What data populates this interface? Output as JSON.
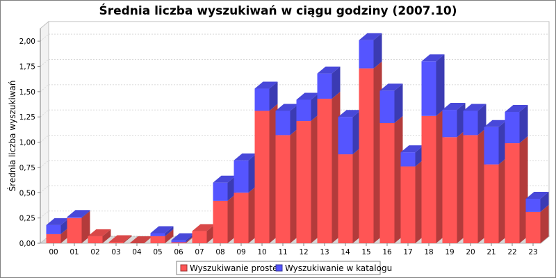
{
  "chart_data": {
    "type": "bar",
    "stacked": true,
    "three_d": true,
    "title": "Średnia liczba wyszukiwań w ciągu godziny (2007.10)",
    "xlabel": "",
    "ylabel": "Średnia liczba wyszukiwań",
    "ylim": [
      0,
      2.125
    ],
    "yticks": [
      0,
      0.25,
      0.5,
      0.75,
      1.0,
      1.25,
      1.5,
      1.75,
      2.0
    ],
    "ytick_labels": [
      "0,00",
      "0,25",
      "0,50",
      "0,75",
      "1,00",
      "1,25",
      "1,50",
      "1,75",
      "2,00"
    ],
    "categories": [
      "00",
      "01",
      "02",
      "03",
      "04",
      "05",
      "06",
      "07",
      "08",
      "09",
      "10",
      "11",
      "12",
      "13",
      "14",
      "15",
      "16",
      "17",
      "18",
      "19",
      "20",
      "21",
      "22",
      "23"
    ],
    "series": [
      {
        "name": "Wyszukiwanie proste",
        "color": "#ff5555",
        "values": [
          0.09,
          0.25,
          0.07,
          0.01,
          0.0,
          0.07,
          0.01,
          0.12,
          0.42,
          0.5,
          1.31,
          1.07,
          1.21,
          1.43,
          0.88,
          1.73,
          1.19,
          0.76,
          1.26,
          1.05,
          1.07,
          0.78,
          0.99,
          0.31
        ]
      },
      {
        "name": "Wyszukiwanie w katalogu",
        "color": "#5555ff",
        "values": [
          0.09,
          0.01,
          0.0,
          0.0,
          0.0,
          0.03,
          0.02,
          0.0,
          0.18,
          0.32,
          0.22,
          0.24,
          0.21,
          0.25,
          0.37,
          0.28,
          0.32,
          0.14,
          0.54,
          0.27,
          0.24,
          0.37,
          0.31,
          0.13
        ]
      }
    ],
    "grid": true,
    "legend_position": "bottom"
  }
}
